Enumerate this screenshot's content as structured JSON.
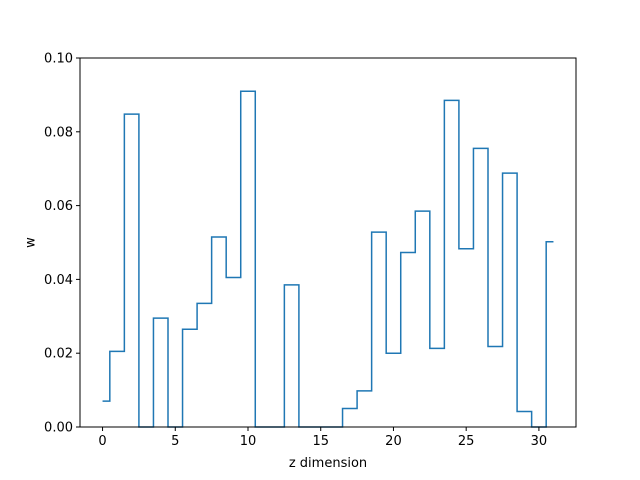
{
  "chart_data": {
    "type": "line",
    "drawstyle": "steps-mid",
    "title": "",
    "xlabel": "z dimension",
    "ylabel": "w",
    "xlim": [
      -1.55,
      32.55
    ],
    "ylim": [
      0,
      0.1
    ],
    "xticks": [
      0,
      5,
      10,
      15,
      20,
      25,
      30
    ],
    "xtick_labels": [
      "0",
      "5",
      "10",
      "15",
      "20",
      "25",
      "30"
    ],
    "yticks": [
      0,
      0.02,
      0.04,
      0.06,
      0.08,
      0.1
    ],
    "ytick_labels": [
      "0.00",
      "0.02",
      "0.04",
      "0.06",
      "0.08",
      "0.10"
    ],
    "grid": false,
    "series": [
      {
        "color": "#1f77b4",
        "x": [
          0,
          1,
          2,
          3,
          4,
          5,
          6,
          7,
          8,
          9,
          10,
          11,
          12,
          13,
          14,
          15,
          16,
          17,
          18,
          19,
          20,
          21,
          22,
          23,
          24,
          25,
          26,
          27,
          28,
          29,
          30,
          31
        ],
        "values": [
          0.007,
          0.0205,
          0.0848,
          0.0,
          0.0295,
          0.0,
          0.0265,
          0.0335,
          0.0515,
          0.0405,
          0.091,
          0.0,
          0.0,
          0.0385,
          0.0,
          0.0,
          0.0,
          0.005,
          0.0098,
          0.0528,
          0.02,
          0.0473,
          0.0585,
          0.0213,
          0.0885,
          0.0483,
          0.0755,
          0.0218,
          0.0688,
          0.0042,
          0.0,
          0.0502
        ]
      }
    ]
  }
}
